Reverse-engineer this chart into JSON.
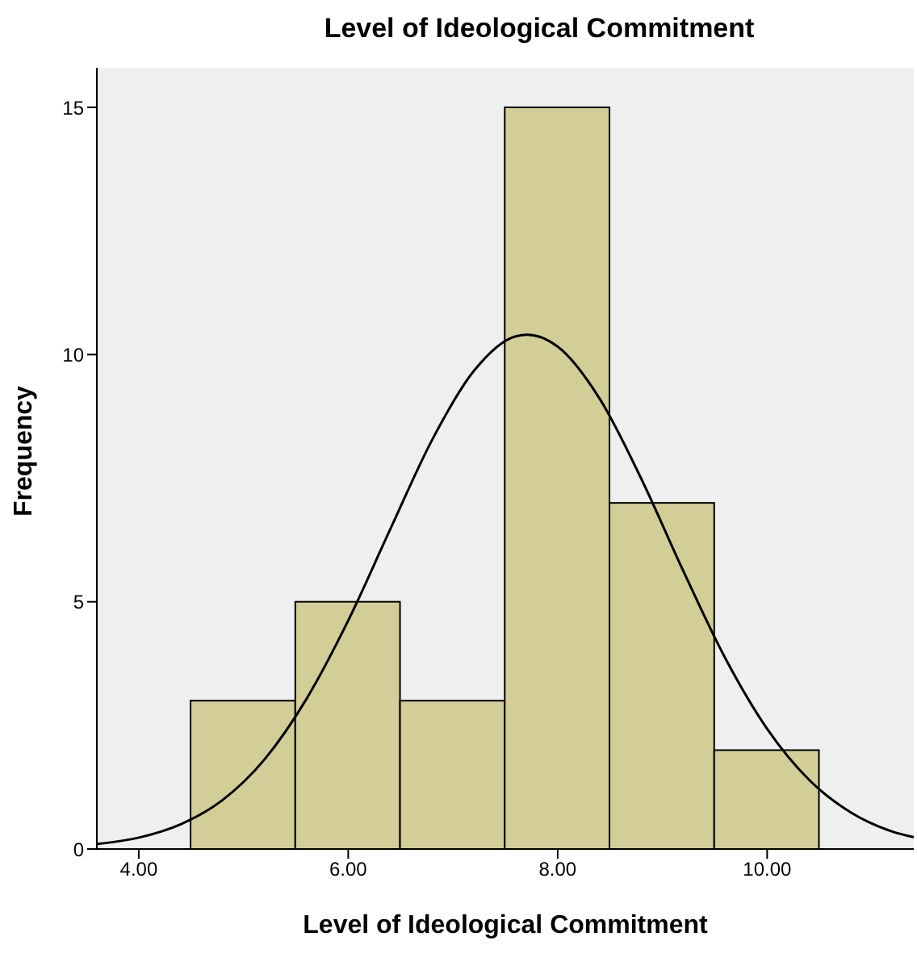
{
  "chart_data": {
    "type": "histogram",
    "title": "Level of Ideological Commitment",
    "xlabel": "Level of Ideological Commitment",
    "ylabel": "Frequency",
    "bins": [
      4.5,
      5.5,
      6.5,
      7.5,
      8.5,
      9.5,
      10.5
    ],
    "series": [
      {
        "type": "histogram",
        "color": "#d3ce97",
        "values": [
          3,
          5,
          3,
          15,
          7,
          2
        ]
      },
      {
        "type": "line",
        "color": "#000000",
        "x": [
          3.6,
          4.0,
          4.4,
          4.8,
          5.2,
          5.6,
          6.0,
          6.4,
          6.8,
          7.2,
          7.6,
          7.71,
          8.0,
          8.4,
          8.8,
          9.2,
          9.6,
          10.0,
          10.4,
          10.8,
          11.2,
          11.4
        ],
        "values": [
          0.1,
          0.23,
          0.5,
          0.99,
          1.81,
          3.03,
          4.62,
          6.46,
          8.27,
          9.67,
          10.37,
          10.4,
          10.16,
          9.11,
          7.48,
          5.62,
          3.86,
          2.43,
          1.4,
          0.74,
          0.35,
          0.24
        ]
      }
    ],
    "xlim": [
      3.6,
      11.4
    ],
    "xticks": [
      {
        "value": 4,
        "label": "4.00"
      },
      {
        "value": 6,
        "label": "6.00"
      },
      {
        "value": 8,
        "label": "8.00"
      },
      {
        "value": 10,
        "label": "10.00"
      }
    ],
    "ylim": [
      0,
      15.8
    ],
    "yticks": [
      0,
      5,
      10,
      15
    ],
    "grid": false,
    "legend": false,
    "marker": "none",
    "line_style": "solid"
  }
}
